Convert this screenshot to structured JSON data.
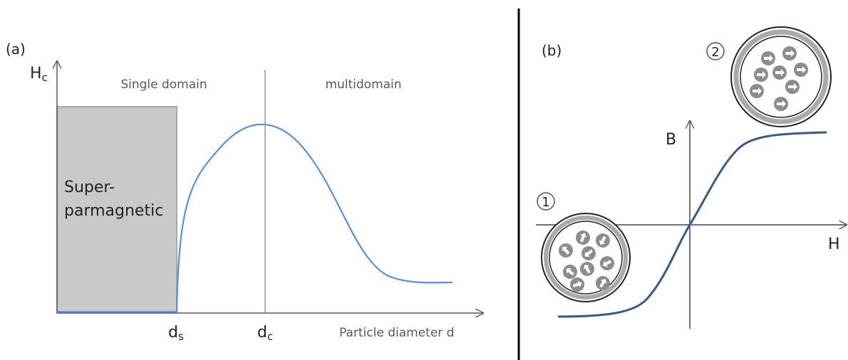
{
  "panel_a": {
    "label": "(a)",
    "y_axis": {
      "main": "H",
      "sub": "c"
    },
    "region_left": "Single domain",
    "region_right": "multidomain",
    "box_label": [
      "Super-",
      "parmagnetic"
    ],
    "tick_ds": {
      "main": "d",
      "sub": "s"
    },
    "tick_dc": {
      "main": "d",
      "sub": "c"
    },
    "x_axis": "Particle diameter d"
  },
  "panel_b": {
    "label": "(b)",
    "y_axis": "B",
    "x_axis": "H",
    "state_1": "1",
    "state_2": "2"
  }
}
